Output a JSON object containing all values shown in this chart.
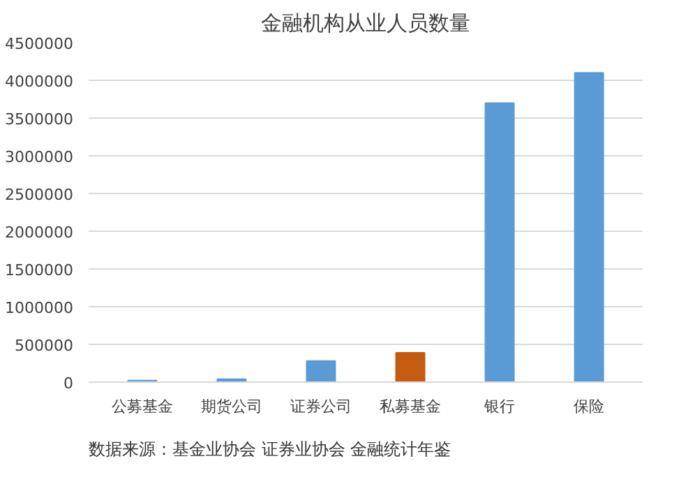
{
  "chart_data": {
    "type": "bar",
    "title": "金融机构从业人员数量",
    "categories": [
      "公募基金",
      "期货公司",
      "证券公司",
      "私募基金",
      "银行",
      "保险"
    ],
    "values": [
      20000,
      40000,
      280000,
      390000,
      3700000,
      4100000
    ],
    "colors": [
      "#5b9bd5",
      "#5b9bd5",
      "#5b9bd5",
      "#c55a11",
      "#5b9bd5",
      "#5b9bd5"
    ],
    "ylim": [
      0,
      4500000
    ],
    "yticks": [
      0,
      500000,
      1000000,
      1500000,
      2000000,
      2500000,
      3000000,
      3500000,
      4000000,
      4500000
    ],
    "grid": "y",
    "annotations": [
      "数据来源：基金业协会 证券业协会 金融统计年鉴"
    ]
  }
}
